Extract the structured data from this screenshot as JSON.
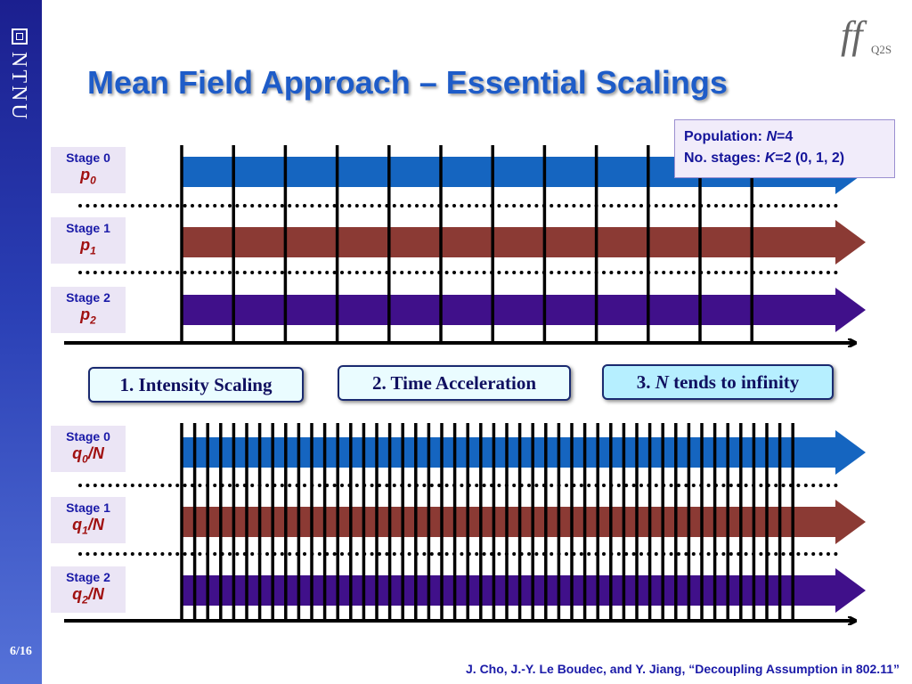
{
  "sidebar": {
    "brand": "NTNU",
    "page_number": "6/16"
  },
  "logo": {
    "mark": "ff",
    "text": "Q2S"
  },
  "title": "Mean Field Approach – Essential Scalings",
  "info_box": {
    "population_label": "Population: ",
    "population_var": "N",
    "population_value": "=4",
    "stages_label": "No. stages: ",
    "stages_var": "K",
    "stages_value": "=2 (0, 1, 2)"
  },
  "top_diagram": {
    "stages": [
      {
        "label": "Stage 0",
        "prob": "p",
        "sub": "0"
      },
      {
        "label": "Stage 1",
        "prob": "p",
        "sub": "1"
      },
      {
        "label": "Stage 2",
        "prob": "p",
        "sub": "2"
      }
    ]
  },
  "steps": [
    {
      "text": "1. Intensity Scaling"
    },
    {
      "text": "2. Time Acceleration"
    },
    {
      "prefix": "3. ",
      "var": "N",
      "suffix": " tends to infinity"
    }
  ],
  "bottom_diagram": {
    "stages": [
      {
        "label": "Stage 0",
        "prob": "q",
        "sub": "0",
        "suffix": "/N"
      },
      {
        "label": "Stage 1",
        "prob": "q",
        "sub": "1",
        "suffix": "/N"
      },
      {
        "label": "Stage 2",
        "prob": "q",
        "sub": "2",
        "suffix": "/N"
      }
    ]
  },
  "citation": "J. Cho, J.-Y. Le Boudec, and Y. Jiang, “Decoupling Assumption in 802.11”",
  "colors": {
    "stage0_arrow": "#1565c0",
    "stage1_arrow": "#8b3a34",
    "stage2_arrow": "#40108a",
    "title": "#1e5cc8",
    "sidebar": "#2a3fb5"
  }
}
